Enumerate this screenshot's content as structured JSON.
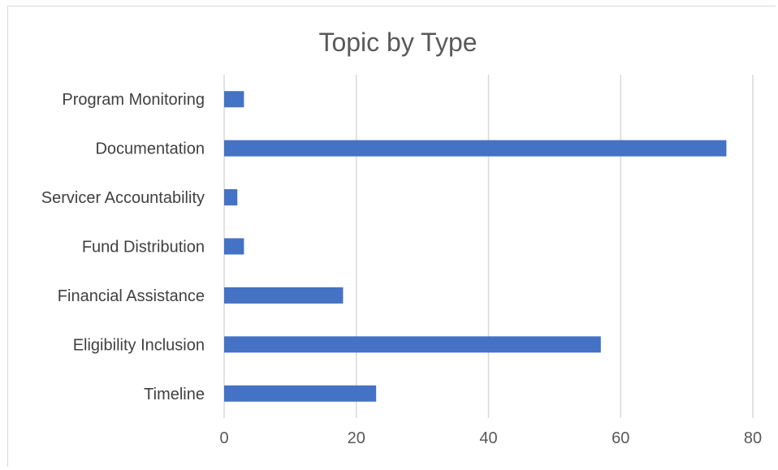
{
  "chart_data": {
    "type": "bar",
    "orientation": "horizontal",
    "title": "Topic by Type",
    "xlabel": "",
    "ylabel": "",
    "categories": [
      "Program Monitoring",
      "Documentation",
      "Servicer Accountability",
      "Fund Distribution",
      "Financial Assistance",
      "Eligibility Inclusion",
      "Timeline"
    ],
    "values": [
      3,
      76,
      2,
      3,
      18,
      57,
      23
    ],
    "xlim": [
      0,
      80
    ],
    "x_ticks": [
      "0",
      "20",
      "40",
      "60",
      "80"
    ],
    "grid": true,
    "legend": "none",
    "colors": {
      "bar": "#4472c4",
      "grid": "#d9d9d9",
      "title": "#595959",
      "label": "#404040"
    }
  }
}
